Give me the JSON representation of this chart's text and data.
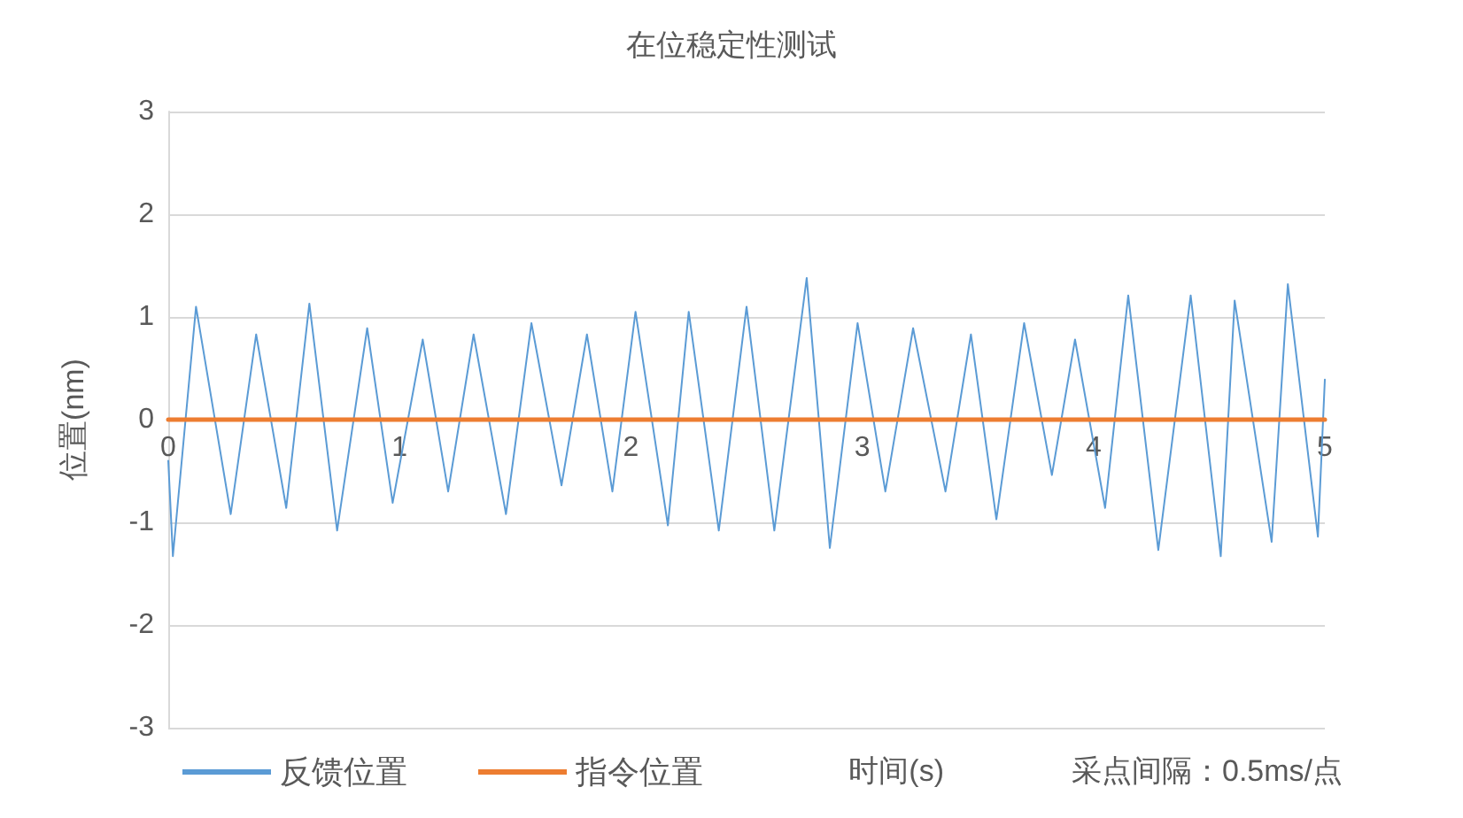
{
  "chart_data": {
    "type": "line",
    "title": "在位稳定性测试",
    "ylabel": "位置(nm)",
    "xlabel": "时间(s)",
    "annotations": [
      "采点间隔：0.5ms/点"
    ],
    "xlim": [
      0,
      5
    ],
    "xticks": [
      0,
      1,
      2,
      3,
      4,
      5
    ],
    "ylim": [
      -3,
      3
    ],
    "yticks": [
      -3,
      -2,
      -1,
      0,
      1,
      2,
      3
    ],
    "grid": "y",
    "legend": "bottom",
    "marker": "none",
    "line_style": "solid",
    "series": [
      {
        "name": "反馈位置",
        "color": "#5b9bd5",
        "x": [
          0,
          0.02,
          0.12,
          0.27,
          0.38,
          0.51,
          0.61,
          0.73,
          0.86,
          0.97,
          1.1,
          1.21,
          1.32,
          1.46,
          1.57,
          1.7,
          1.81,
          1.92,
          2.02,
          2.16,
          2.25,
          2.38,
          2.5,
          2.62,
          2.76,
          2.86,
          2.98,
          3.1,
          3.22,
          3.36,
          3.47,
          3.58,
          3.7,
          3.82,
          3.92,
          4.05,
          4.15,
          4.28,
          4.42,
          4.55,
          4.61,
          4.77,
          4.84,
          4.97,
          5
        ],
        "values": [
          -0.4,
          -1.33,
          1.1,
          -0.92,
          0.83,
          -0.86,
          1.13,
          -1.08,
          0.89,
          -0.81,
          0.78,
          -0.7,
          0.83,
          -0.92,
          0.94,
          -0.64,
          0.83,
          -0.7,
          1.05,
          -1.03,
          1.05,
          -1.08,
          1.1,
          -1.08,
          1.38,
          -1.25,
          0.94,
          -0.7,
          0.89,
          -0.7,
          0.83,
          -0.97,
          0.94,
          -0.54,
          0.78,
          -0.86,
          1.21,
          -1.27,
          1.21,
          -1.33,
          1.16,
          -1.19,
          1.32,
          -1.14,
          0.39
        ]
      },
      {
        "name": "指令位置",
        "color": "#ed7d31",
        "x": [
          0,
          5
        ],
        "values": [
          0,
          0
        ]
      }
    ]
  }
}
